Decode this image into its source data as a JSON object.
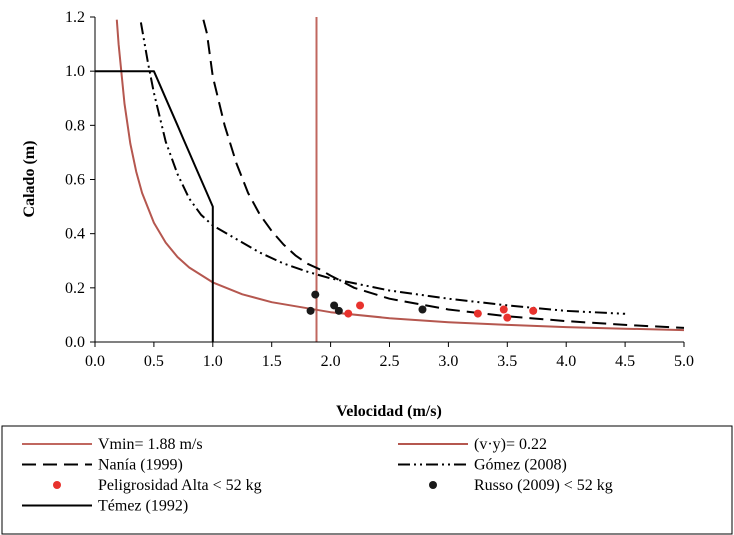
{
  "chart_data": {
    "type": "line",
    "xlabel": "Velocidad  (m/s)",
    "ylabel": "Calado (m)",
    "xlim": [
      0,
      5
    ],
    "ylim": [
      0,
      1.2
    ],
    "x_ticks": [
      "0.0",
      "0.5",
      "1.0",
      "1.5",
      "2.0",
      "2.5",
      "3.0",
      "3.5",
      "4.0",
      "4.5",
      "5.0"
    ],
    "y_ticks": [
      "0.0",
      "0.2",
      "0.4",
      "0.6",
      "0.8",
      "1.0",
      "1.2"
    ],
    "grid": false,
    "legend_position": "bottom",
    "series": [
      {
        "name": "Vmin= 1.88 m/s",
        "kind": "line",
        "style": "solid",
        "color": "#c0675f",
        "x": [
          1.88,
          1.88
        ],
        "y": [
          0,
          1.2
        ]
      },
      {
        "name": "(v·y)= 0.22",
        "kind": "line",
        "style": "solid",
        "color": "#b5574f",
        "x": [
          0.185,
          0.2,
          0.25,
          0.3,
          0.35,
          0.4,
          0.5,
          0.6,
          0.7,
          0.8,
          1.0,
          1.25,
          1.5,
          2.0,
          2.5,
          3.0,
          3.5,
          4.0,
          4.5,
          5.0
        ],
        "y": [
          1.19,
          1.1,
          0.88,
          0.733,
          0.629,
          0.55,
          0.44,
          0.367,
          0.314,
          0.275,
          0.22,
          0.176,
          0.147,
          0.11,
          0.088,
          0.073,
          0.063,
          0.055,
          0.049,
          0.044
        ]
      },
      {
        "name": "Nanía (1999)",
        "kind": "line",
        "style": "long-dash",
        "color": "#000000",
        "x": [
          0.92,
          0.95,
          1.0,
          1.1,
          1.2,
          1.3,
          1.4,
          1.5,
          1.6,
          1.7,
          1.8,
          1.9,
          2.0,
          2.2,
          2.5,
          3.0,
          3.5,
          4.0,
          4.5,
          5.0
        ],
        "y": [
          1.19,
          1.14,
          0.98,
          0.8,
          0.66,
          0.55,
          0.47,
          0.41,
          0.36,
          0.32,
          0.29,
          0.27,
          0.245,
          0.2,
          0.16,
          0.12,
          0.095,
          0.077,
          0.063,
          0.052
        ]
      },
      {
        "name": "Gómez (2008)",
        "kind": "line",
        "style": "dash-dot-dot",
        "color": "#000000",
        "x": [
          0.39,
          0.45,
          0.5,
          0.6,
          0.7,
          0.8,
          0.9,
          1.0,
          1.2,
          1.4,
          1.6,
          1.8,
          2.0,
          2.5,
          3.0,
          3.5,
          4.0,
          4.5
        ],
        "y": [
          1.18,
          1.03,
          0.92,
          0.74,
          0.62,
          0.53,
          0.47,
          0.43,
          0.38,
          0.33,
          0.29,
          0.26,
          0.235,
          0.19,
          0.16,
          0.135,
          0.115,
          0.104
        ]
      },
      {
        "name": "Peligrosidad Alta < 52 kg",
        "kind": "scatter",
        "color": "#e8322d",
        "x": [
          2.15,
          2.25,
          3.25,
          3.47,
          3.5,
          3.72
        ],
        "y": [
          0.105,
          0.135,
          0.105,
          0.12,
          0.09,
          0.115
        ]
      },
      {
        "name": "Russo (2009) < 52 kg",
        "kind": "scatter",
        "color": "#1a1a1a",
        "x": [
          1.83,
          1.87,
          2.03,
          2.07,
          2.78
        ],
        "y": [
          0.115,
          0.175,
          0.135,
          0.115,
          0.12
        ]
      },
      {
        "name": "Témez (1992)",
        "kind": "line",
        "style": "solid",
        "color": "#000000",
        "x": [
          0,
          0.5,
          0.55,
          0.6,
          0.65,
          0.7,
          0.75,
          0.8,
          0.85,
          0.9,
          0.95,
          1.0,
          1.0
        ],
        "y": [
          1.0,
          1.0,
          0.95,
          0.9,
          0.85,
          0.8,
          0.75,
          0.7,
          0.65,
          0.6,
          0.55,
          0.5,
          0
        ]
      }
    ]
  }
}
